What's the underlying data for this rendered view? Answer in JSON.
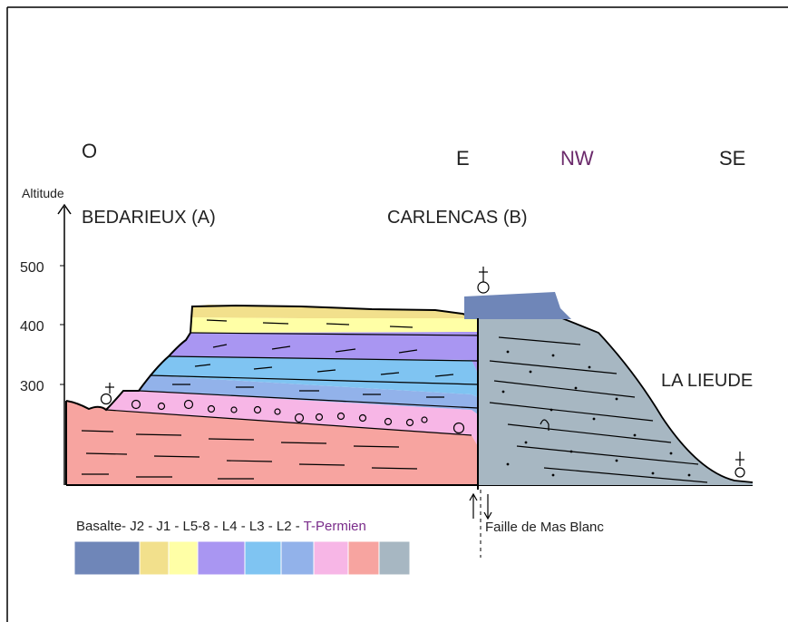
{
  "directions": {
    "west": "O",
    "east": "E",
    "northwest": "NW",
    "southeast": "SE"
  },
  "axis": {
    "label": "Altitude",
    "ticks": [
      "500",
      "400",
      "300"
    ]
  },
  "places": {
    "bedarieux": "BEDARIEUX (A)",
    "carlencas": "CARLENCAS (B)",
    "lalieude": "LA LIEUDE"
  },
  "fault_label": "Faille de Mas Blanc",
  "legend": {
    "text_main": "Basalte- J2 - J1 - L5-8 - L4 - L3 - L2 - ",
    "text_permien": "T-Permien",
    "swatches": [
      {
        "name": "Basalte",
        "color": "#6f86b8"
      },
      {
        "name": "J2",
        "color": "#f2e08c"
      },
      {
        "name": "J1",
        "color": "#ffffa6"
      },
      {
        "name": "L5-8",
        "color": "#a996f2"
      },
      {
        "name": "L4",
        "color": "#7fc4f2"
      },
      {
        "name": "L3",
        "color": "#92b2ea"
      },
      {
        "name": "L2",
        "color": "#f7b6e6"
      },
      {
        "name": "T-Permien",
        "color": "#f7a4a0"
      },
      {
        "name": "Permien-NW",
        "color": "#a7b7c2"
      }
    ]
  },
  "colors": {
    "basalt": "#6f86b8",
    "j2": "#f2e08c",
    "j1": "#ffffa6",
    "l58": "#a996f2",
    "l4": "#7fc4f2",
    "l3": "#92b2ea",
    "l2": "#f7b6e6",
    "permien": "#f7a4a0",
    "block_b": "#a7b7c2",
    "nw_text": "#6b2a6b",
    "permien_text": "#7a2c8a"
  }
}
